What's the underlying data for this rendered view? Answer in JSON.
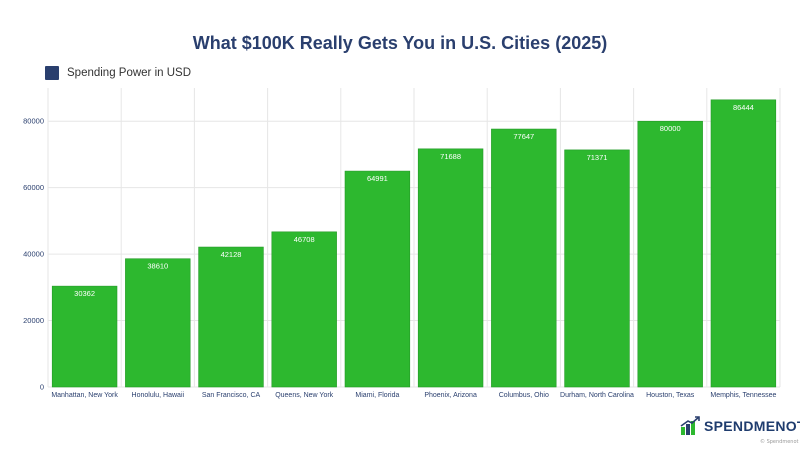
{
  "colors": {
    "bar": "#2db82f",
    "bar_stroke": "#249a27",
    "legend_swatch": "#2a3f6e",
    "grid": "#e6e6e6",
    "title": "#2a3f6e",
    "axis_text": "#2a3f6e",
    "data_label": "#ffffff"
  },
  "legend": {
    "label": "Spending Power in USD"
  },
  "brand": {
    "name": "SPENDMENOT",
    "icon": "bar-chart-logo-icon"
  },
  "watermark": {
    "text": "© Spendmenot"
  },
  "chart_data": {
    "type": "bar",
    "title": "What $100K Really Gets You in U.S. Cities (2025)",
    "xlabel": "",
    "ylabel": "",
    "ylim": [
      0,
      90000
    ],
    "yticks": [
      0,
      20000,
      40000,
      60000,
      80000
    ],
    "grid": true,
    "legend_position": "top-left",
    "categories": [
      "Manhattan, New York",
      "Honolulu, Hawaii",
      "San Francisco, CA",
      "Queens, New York",
      "Miami, Florida",
      "Phoenix, Arizona",
      "Columbus, Ohio",
      "Durham, North Carolina",
      "Houston, Texas",
      "Memphis, Tennessee"
    ],
    "series": [
      {
        "name": "Spending Power in USD",
        "values": [
          30362,
          38610,
          42128,
          46708,
          64991,
          71688,
          77647,
          71371,
          80000,
          86444
        ]
      }
    ]
  }
}
